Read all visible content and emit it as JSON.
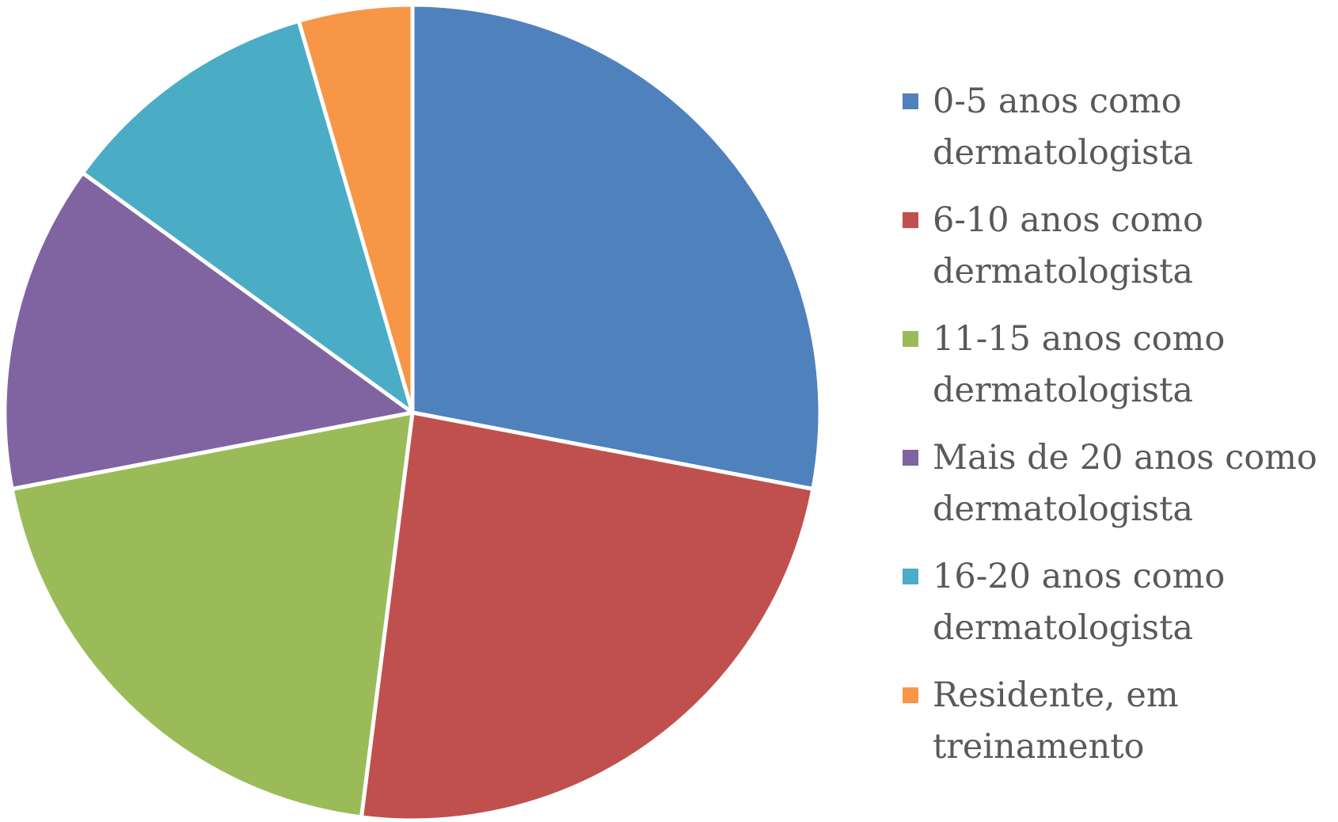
{
  "chart_data": {
    "type": "pie",
    "series": [
      {
        "name": "0-5 anos como dermatologista",
        "color": "#4f81bd",
        "values": [
          28
        ]
      },
      {
        "name": "6-10 anos como dermatologista",
        "color": "#c0504d",
        "values": [
          24
        ]
      },
      {
        "name": "11-15 anos como dermatologista",
        "color": "#9bbb59",
        "values": [
          20
        ]
      },
      {
        "name": "Mais de 20 anos como dermatologista",
        "color": "#8064a2",
        "values": [
          13
        ]
      },
      {
        "name": "16-20 anos como dermatologista",
        "color": "#4bacc6",
        "values": [
          10.5
        ]
      },
      {
        "name": "Residente, em treinamento",
        "color": "#f79646",
        "values": [
          4.5
        ]
      }
    ],
    "legend": "right"
  }
}
